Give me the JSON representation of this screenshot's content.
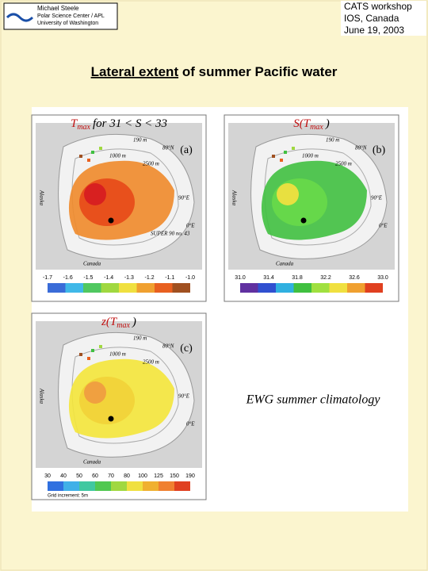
{
  "header": {
    "affiliation": [
      "Michael Steele",
      "Polar Science Center / APL",
      "University of Washington"
    ],
    "workshop": [
      "CATS workshop",
      "IOS, Canada",
      "June 19, 2003"
    ]
  },
  "title": {
    "underlined": "Lateral extent",
    "rest": "of summer Pacific water"
  },
  "panels": [
    {
      "label": "(a)",
      "title": {
        "symbol": "T",
        "subscript": "max",
        "rest": "for 31 < S < 33"
      },
      "map_labels": [
        "190 m",
        "1000 m",
        "2500 m",
        "80°N",
        "90°E",
        "0°E",
        "Alaska",
        "Canada",
        "SUPER 90 no. 43"
      ],
      "colorbar_ticks": [
        "-1.7",
        "-1.6",
        "-1.5",
        "-1.4",
        "-1.3",
        "-1.2",
        "-1.1",
        "-1.0"
      ]
    },
    {
      "label": "(b)",
      "title": {
        "symbol": "S(T",
        "subscript": "max",
        "rest": ")"
      },
      "map_labels": [
        "190 m",
        "1000 m",
        "2500 m",
        "80°N",
        "90°E",
        "0°E",
        "Alaska",
        "Canada"
      ],
      "colorbar_ticks": [
        "31.0",
        "31.4",
        "31.8",
        "32.2",
        "32.6",
        "33.0"
      ]
    },
    {
      "label": "(c)",
      "title": {
        "symbol": "z(T",
        "subscript": "max",
        "rest": ")"
      },
      "map_labels": [
        "190 m",
        "1000 m",
        "2500 m",
        "80°N",
        "90°E",
        "0°E",
        "Alaska",
        "Canada"
      ],
      "colorbar_ticks": [
        "30",
        "40",
        "50",
        "60",
        "70",
        "80",
        "100",
        "125",
        "150",
        "190"
      ],
      "colorbar_note": "Grid increment: 5m"
    }
  ],
  "note": "EWG summer climatology"
}
